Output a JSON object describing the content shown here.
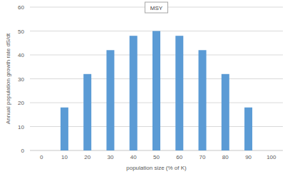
{
  "chart_data": {
    "type": "bar",
    "categories": [
      "0",
      "10",
      "20",
      "30",
      "40",
      "50",
      "60",
      "70",
      "80",
      "90",
      "100"
    ],
    "values": [
      0,
      18,
      32,
      42,
      48,
      50,
      48,
      42,
      32,
      18,
      0
    ],
    "color": "#5b9bd5",
    "x_label": "population size (% of K)",
    "y_label": "Annual population growth rate dS/dt",
    "ylim": [
      0,
      60
    ],
    "yticks": [
      0,
      10,
      20,
      30,
      40,
      50,
      60
    ],
    "grid": true,
    "annotations": [
      {
        "text": "MSY",
        "category": "50"
      }
    ]
  }
}
